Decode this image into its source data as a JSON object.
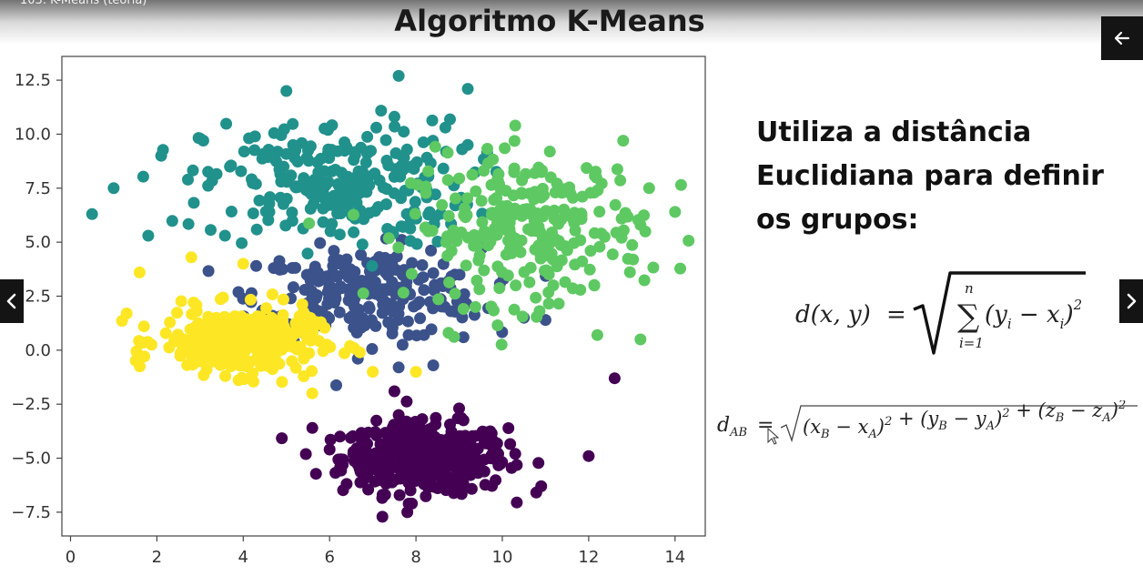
{
  "video_title": "103. K-Means (teoria)",
  "slide": {
    "title": "Algoritmo K-Means",
    "description_lines": [
      "Utiliza a distância",
      "Euclidiana para definir",
      "os grupos:"
    ]
  },
  "controls": {
    "back_icon": "arrow-left-icon",
    "prev_icon": "chevron-left-icon",
    "next_icon": "chevron-right-icon"
  },
  "formula_1": {
    "lhs": "d(x, y)",
    "equals": "=",
    "sum_upper": "n",
    "sum_lower": "i=1",
    "summand": "(y",
    "sub_y": "i",
    "minus": " − x",
    "sub_x": "i",
    "close": ")",
    "power": "2"
  },
  "formula_2": {
    "lhs": "d",
    "lhs_sub": "AB",
    "equals": "=",
    "radicand": "(x B − x A)² + (y B − y A)² + (z B − z A)²",
    "terms": [
      {
        "a": "x",
        "b_sub": "B",
        "c": "x",
        "d_sub": "A"
      },
      {
        "a": "y",
        "b_sub": "B",
        "c": "y",
        "d_sub": "A"
      },
      {
        "a": "z",
        "b_sub": "B",
        "c": "z",
        "d_sub": "A"
      }
    ]
  },
  "chart_data": {
    "type": "scatter",
    "title": "",
    "xlabel": "",
    "ylabel": "",
    "xlim": [
      -0.2,
      14.7
    ],
    "ylim": [
      -8.6,
      13.6
    ],
    "xticks": [
      0,
      2,
      4,
      6,
      8,
      10,
      12,
      14
    ],
    "yticks": [
      -7.5,
      -5.0,
      -2.5,
      0.0,
      2.5,
      5.0,
      7.5,
      10.0,
      12.5
    ],
    "ytick_labels": [
      "−7.5",
      "−5.0",
      "−2.5",
      "0.0",
      "2.5",
      "5.0",
      "7.5",
      "10.0",
      "12.5"
    ],
    "grid": false,
    "series": [
      {
        "color": "#440154",
        "center": [
          8.2,
          -5.0
        ],
        "spread": [
          0.95,
          0.8
        ],
        "n": 430,
        "sample": [
          [
            8.2,
            -5.0
          ],
          [
            6.0,
            -4.6
          ],
          [
            10.3,
            -4.8
          ],
          [
            5.6,
            -3.6
          ],
          [
            12.0,
            -4.9
          ],
          [
            12.6,
            -1.3
          ],
          [
            10.9,
            -6.3
          ],
          [
            7.8,
            -7.5
          ],
          [
            7.5,
            -1.9
          ],
          [
            9.0,
            -2.7
          ]
        ]
      },
      {
        "color": "#3b528b",
        "center": [
          6.9,
          2.6
        ],
        "spread": [
          1.3,
          1.05
        ],
        "n": 240,
        "sample": [
          [
            6.9,
            2.6
          ],
          [
            4.3,
            3.9
          ],
          [
            5.1,
            2.4
          ],
          [
            7.6,
            -0.8
          ],
          [
            8.4,
            -0.7
          ],
          [
            9.1,
            0.6
          ],
          [
            10.5,
            1.5
          ],
          [
            11.0,
            1.4
          ],
          [
            6.1,
            4.6
          ],
          [
            8.9,
            3.5
          ]
        ]
      },
      {
        "color": "#21918c",
        "center": [
          6.2,
          7.7
        ],
        "spread": [
          1.55,
          1.45
        ],
        "n": 260,
        "sample": [
          [
            6.2,
            7.7
          ],
          [
            0.5,
            6.3
          ],
          [
            1.0,
            7.5
          ],
          [
            1.8,
            5.3
          ],
          [
            2.1,
            9.0
          ],
          [
            3.0,
            9.8
          ],
          [
            5.0,
            12.0
          ],
          [
            7.6,
            12.7
          ],
          [
            9.2,
            12.1
          ],
          [
            9.2,
            9.5
          ]
        ]
      },
      {
        "color": "#5ec962",
        "center": [
          10.6,
          5.6
        ],
        "spread": [
          1.35,
          1.7
        ],
        "n": 260,
        "sample": [
          [
            10.6,
            5.6
          ],
          [
            8.7,
            5.0
          ],
          [
            10.3,
            10.4
          ],
          [
            13.4,
            7.5
          ],
          [
            14.0,
            6.4
          ],
          [
            13.2,
            5.8
          ],
          [
            13.2,
            0.5
          ],
          [
            12.2,
            0.7
          ],
          [
            11.1,
            9.2
          ],
          [
            12.8,
            9.7
          ]
        ]
      },
      {
        "color": "#fde725",
        "center": [
          3.9,
          0.4
        ],
        "spread": [
          0.9,
          0.75
        ],
        "n": 330,
        "sample": [
          [
            3.9,
            0.4
          ],
          [
            1.3,
            1.7
          ],
          [
            1.6,
            3.6
          ],
          [
            2.8,
            4.3
          ],
          [
            4.0,
            4.0
          ],
          [
            5.6,
            -2.0
          ],
          [
            6.7,
            -0.1
          ],
          [
            7.0,
            -1.0
          ],
          [
            8.0,
            -1.0
          ],
          [
            1.7,
            1.1
          ]
        ]
      }
    ]
  }
}
